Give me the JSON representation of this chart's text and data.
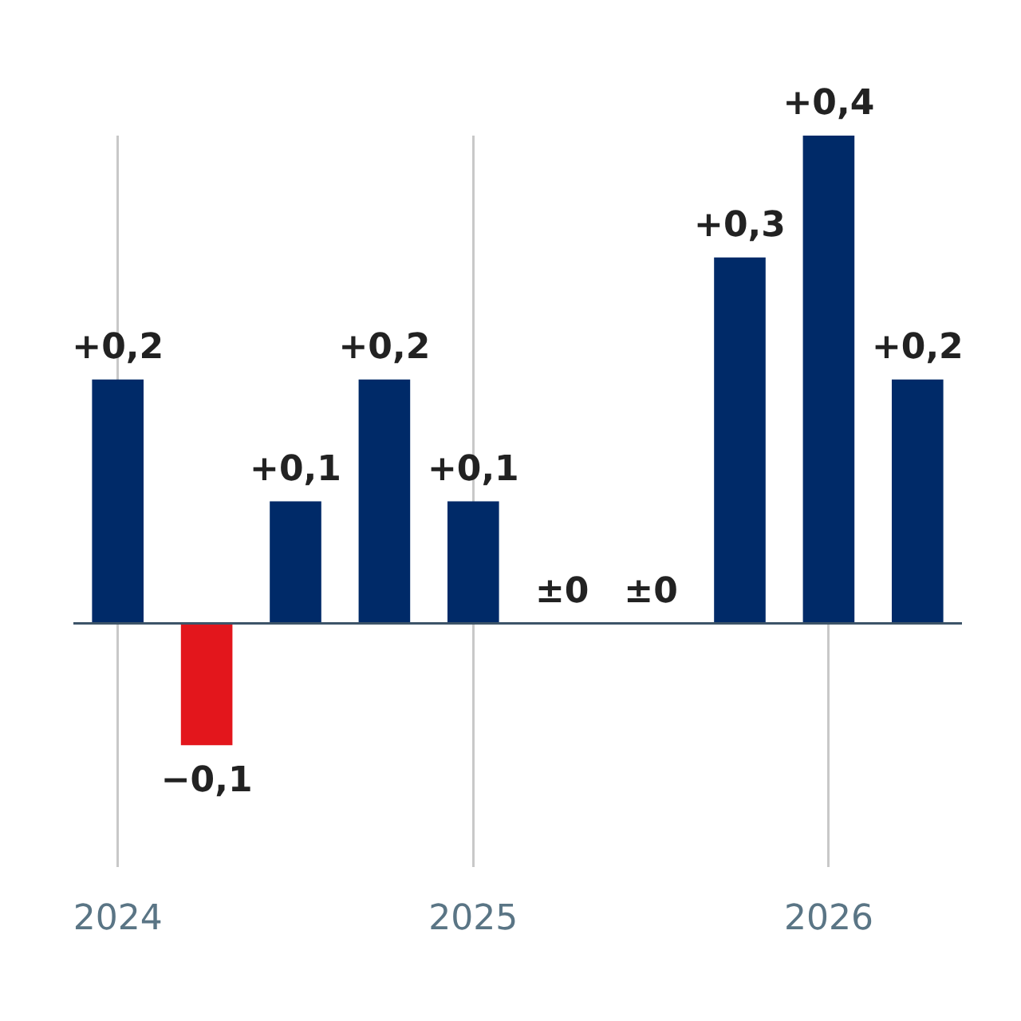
{
  "chart_data": {
    "type": "bar",
    "categories": [
      "2024",
      null,
      null,
      null,
      "2025",
      null,
      null,
      null,
      "2026",
      null
    ],
    "values": [
      0.2,
      -0.1,
      0.1,
      0.2,
      0.1,
      0,
      0,
      0.3,
      0.4,
      0.2
    ],
    "colors": [
      "#002a68",
      "#e3161c",
      "#002a68",
      "#002a68",
      "#002a68",
      "#002a68",
      "#002a68",
      "#002a68",
      "#002a68",
      "#002a68"
    ],
    "value_labels": [
      "+0,2",
      "−0,1",
      "+0,1",
      "+0,2",
      "+0,1",
      "±0",
      "±0",
      "+0,3",
      "+0,4",
      "+0,2"
    ],
    "ylim": [
      -0.2,
      0.4
    ],
    "ref_lines": [
      {
        "axis": "y",
        "value": 0,
        "color": "#3d5468"
      }
    ],
    "grid": "x",
    "legend": false
  }
}
